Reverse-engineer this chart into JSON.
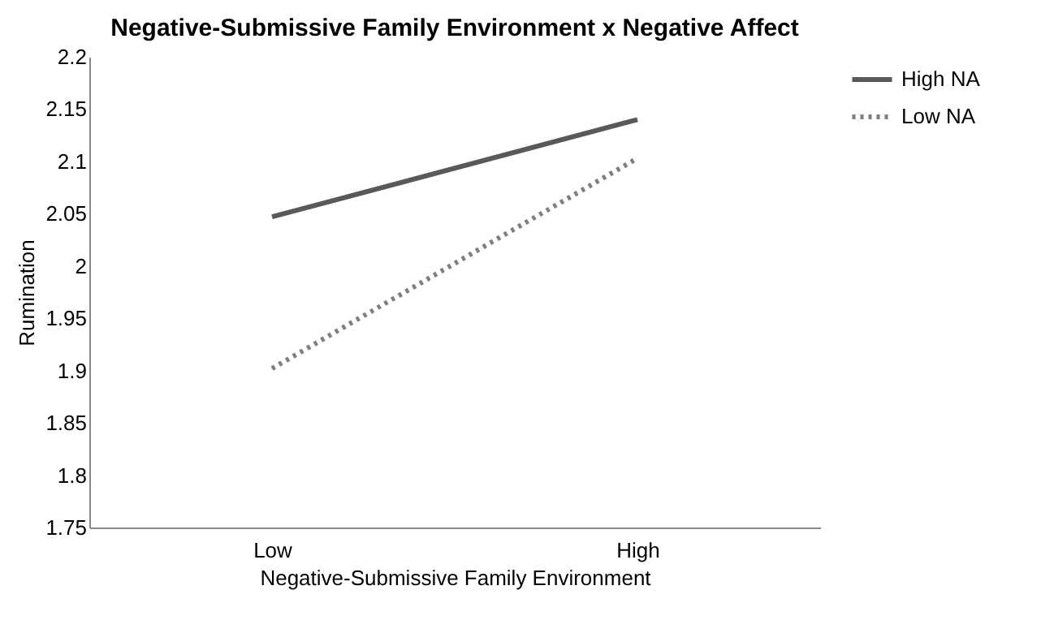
{
  "chart_data": {
    "type": "line",
    "title": "Negative-Submissive Family Environment x Negative Affect",
    "xlabel": "Negative-Submissive Family Environment",
    "ylabel": "Rumination",
    "categories": [
      "Low",
      "High"
    ],
    "series": [
      {
        "name": "High NA",
        "color": "#595959",
        "values": [
          2.047,
          2.14
        ],
        "line_style": "solid"
      },
      {
        "name": "Low NA",
        "color": "#7f7f7f",
        "values": [
          1.902,
          2.103
        ],
        "line_style": "dotted"
      }
    ],
    "ylim": [
      1.75,
      2.2
    ],
    "yticks": [
      1.75,
      1.8,
      1.85,
      1.9,
      1.95,
      2,
      2.05,
      2.1,
      2.15,
      2.2
    ],
    "grid": false,
    "legend": "right",
    "marker": "none"
  }
}
